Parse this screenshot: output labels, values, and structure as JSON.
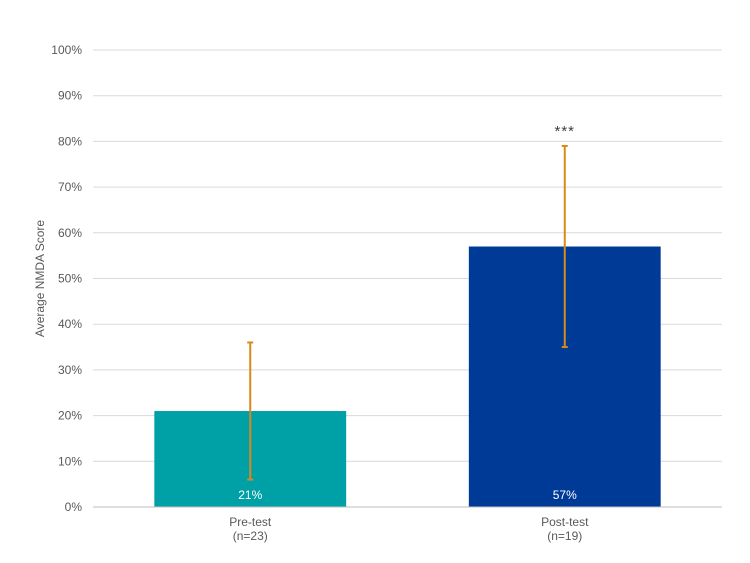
{
  "chart_data": {
    "type": "bar",
    "title": "",
    "xlabel": "",
    "ylabel": "Average NMDA Score",
    "ylim": [
      0,
      100
    ],
    "ytick_step": 10,
    "ytick_format": "percent",
    "grid": true,
    "categories": [
      {
        "label": "Pre-test",
        "sublabel": "(n=23)"
      },
      {
        "label": "Post-test",
        "sublabel": "(n=19)"
      }
    ],
    "values": [
      21,
      57
    ],
    "data_labels": [
      "21%",
      "57%"
    ],
    "error_low": [
      6,
      35
    ],
    "error_high": [
      36,
      79
    ],
    "annotations": [
      "",
      "***"
    ],
    "colors": {
      "bars": [
        "#00A0A7",
        "#003A97"
      ],
      "error_bars": "#D9891A",
      "grid": "#D9D9D9",
      "axis": "#BFBFBF"
    }
  }
}
